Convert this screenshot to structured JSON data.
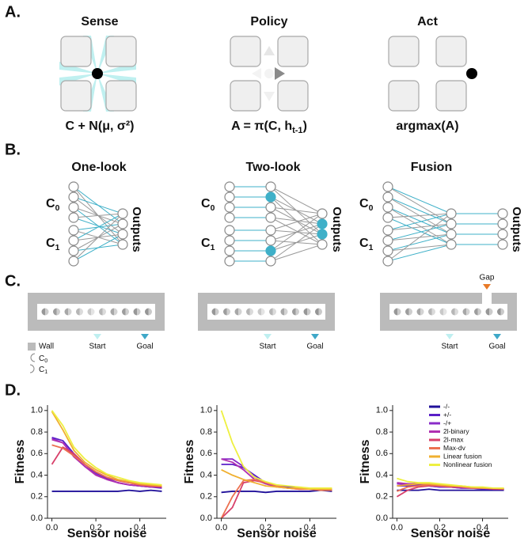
{
  "panel_labels": [
    "A.",
    "B.",
    "C.",
    "D."
  ],
  "loop": [
    {
      "title": "Sense",
      "formula": {
        "main": "C + N(μ, σ²)"
      }
    },
    {
      "title": "Policy",
      "formula": {
        "main": "A = π(C, h",
        "sub": "t-1",
        "end": ")"
      }
    },
    {
      "title": "Act",
      "formula": {
        "main": "argmax(A)"
      }
    }
  ],
  "networks": [
    {
      "title": "One-look",
      "c0": {
        "main": "C",
        "sub": "0"
      },
      "c1": {
        "main": "C",
        "sub": "1"
      },
      "outputs": "Outputs"
    },
    {
      "title": "Two-look",
      "c0": {
        "main": "C",
        "sub": "0"
      },
      "c1": {
        "main": "C",
        "sub": "1"
      },
      "outputs": "Outputs"
    },
    {
      "title": "Fusion",
      "c0": {
        "main": "C",
        "sub": "0"
      },
      "c1": {
        "main": "C",
        "sub": "1"
      },
      "outputs": "Outputs"
    }
  ],
  "environment": {
    "legend": {
      "wall": "Wall",
      "c0": {
        "main": "C",
        "sub": "0"
      },
      "c1": {
        "main": "C",
        "sub": "1"
      }
    },
    "tracks": [
      {
        "start": "Start",
        "goal": "Goal"
      },
      {
        "start": "Start",
        "goal": "Goal"
      },
      {
        "start": "Start",
        "goal": "Goal",
        "gap": "Gap"
      }
    ]
  },
  "chart_data": [
    {
      "type": "line",
      "xlabel": "Sensor noise",
      "ylabel": "Fitness",
      "x": [
        0,
        0.05,
        0.1,
        0.15,
        0.2,
        0.25,
        0.3,
        0.35,
        0.4,
        0.45,
        0.5
      ],
      "xlim": [
        -0.02,
        0.52
      ],
      "xticks": [
        {
          "value": 0,
          "label": "0.0"
        },
        0.2,
        0.4
      ],
      "ylim": [
        0,
        1.05
      ],
      "yticks": [
        {
          "value": 0,
          "label": "0.0"
        },
        0.2,
        0.4,
        0.6,
        0.8,
        {
          "value": 1,
          "label": "1.0"
        }
      ],
      "series": [
        {
          "color": "#20109a",
          "values": [
            0.25,
            0.25,
            0.25,
            0.25,
            0.25,
            0.25,
            0.25,
            0.26,
            0.25,
            0.26,
            0.25
          ]
        },
        {
          "color": "#5a1fc8",
          "values": [
            0.75,
            0.72,
            0.6,
            0.5,
            0.42,
            0.37,
            0.33,
            0.31,
            0.3,
            0.29,
            0.28
          ]
        },
        {
          "color": "#8a2cc8",
          "values": [
            0.74,
            0.7,
            0.58,
            0.48,
            0.41,
            0.36,
            0.33,
            0.31,
            0.3,
            0.29,
            0.29
          ]
        },
        {
          "color": "#b030b0",
          "values": [
            0.73,
            0.7,
            0.57,
            0.48,
            0.4,
            0.36,
            0.33,
            0.31,
            0.3,
            0.29,
            0.29
          ]
        },
        {
          "color": "#d8406a",
          "values": [
            0.5,
            0.66,
            0.6,
            0.5,
            0.43,
            0.38,
            0.35,
            0.33,
            0.31,
            0.3,
            0.29
          ]
        },
        {
          "color": "#ec7050",
          "values": [
            0.68,
            0.65,
            0.58,
            0.5,
            0.43,
            0.38,
            0.35,
            0.33,
            0.31,
            0.3,
            0.3
          ]
        },
        {
          "color": "#f0b030",
          "values": [
            0.99,
            0.82,
            0.63,
            0.52,
            0.45,
            0.4,
            0.36,
            0.34,
            0.32,
            0.31,
            0.3
          ]
        },
        {
          "color": "#eef040",
          "values": [
            1.0,
            0.86,
            0.66,
            0.55,
            0.47,
            0.41,
            0.38,
            0.35,
            0.33,
            0.32,
            0.31
          ]
        }
      ]
    },
    {
      "type": "line",
      "xlabel": "Sensor noise",
      "ylabel": "Fitness",
      "x": [
        0,
        0.05,
        0.1,
        0.15,
        0.2,
        0.25,
        0.3,
        0.35,
        0.4,
        0.45,
        0.5
      ],
      "xlim": [
        -0.02,
        0.52
      ],
      "xticks": [
        {
          "value": 0,
          "label": "0.0"
        },
        0.2,
        0.4
      ],
      "ylim": [
        0,
        1.05
      ],
      "yticks": [
        {
          "value": 0,
          "label": "0.0"
        },
        0.2,
        0.4,
        0.6,
        0.8,
        {
          "value": 1,
          "label": "1.0"
        }
      ],
      "series": [
        {
          "color": "#20109a",
          "values": [
            0.24,
            0.25,
            0.25,
            0.25,
            0.24,
            0.25,
            0.25,
            0.25,
            0.25,
            0.26,
            0.25
          ]
        },
        {
          "color": "#5a1fc8",
          "values": [
            0.5,
            0.5,
            0.47,
            0.4,
            0.33,
            0.3,
            0.29,
            0.28,
            0.27,
            0.27,
            0.27
          ]
        },
        {
          "color": "#8a2cc8",
          "values": [
            0.55,
            0.55,
            0.48,
            0.38,
            0.32,
            0.3,
            0.28,
            0.28,
            0.27,
            0.27,
            0.27
          ]
        },
        {
          "color": "#b030b0",
          "values": [
            0.55,
            0.52,
            0.45,
            0.36,
            0.32,
            0.29,
            0.28,
            0.28,
            0.27,
            0.27,
            0.27
          ]
        },
        {
          "color": "#d8406a",
          "values": [
            0.0,
            0.1,
            0.33,
            0.35,
            0.33,
            0.3,
            0.28,
            0.27,
            0.27,
            0.26,
            0.26
          ]
        },
        {
          "color": "#ec7050",
          "values": [
            0.0,
            0.2,
            0.35,
            0.36,
            0.33,
            0.3,
            0.28,
            0.27,
            0.27,
            0.26,
            0.26
          ]
        },
        {
          "color": "#f0b030",
          "values": [
            0.45,
            0.4,
            0.36,
            0.33,
            0.3,
            0.29,
            0.28,
            0.28,
            0.27,
            0.27,
            0.27
          ]
        },
        {
          "color": "#eef040",
          "values": [
            1.0,
            0.7,
            0.48,
            0.38,
            0.34,
            0.31,
            0.3,
            0.29,
            0.28,
            0.28,
            0.28
          ]
        }
      ]
    },
    {
      "type": "line",
      "xlabel": "Sensor noise",
      "ylabel": "Fitness",
      "x": [
        0,
        0.05,
        0.1,
        0.15,
        0.2,
        0.25,
        0.3,
        0.35,
        0.4,
        0.45,
        0.5
      ],
      "xlim": [
        -0.02,
        0.52
      ],
      "xticks": [
        {
          "value": 0,
          "label": "0.0"
        },
        0.2,
        0.4
      ],
      "ylim": [
        0,
        1.05
      ],
      "yticks": [
        {
          "value": 0,
          "label": "0.0"
        },
        0.2,
        0.4,
        0.6,
        0.8,
        {
          "value": 1,
          "label": "1.0"
        }
      ],
      "legend": "upper right",
      "series": [
        {
          "name": "-/-",
          "color": "#20109a",
          "values": [
            0.26,
            0.26,
            0.26,
            0.27,
            0.26,
            0.26,
            0.26,
            0.26,
            0.26,
            0.26,
            0.26
          ]
        },
        {
          "name": "+/-",
          "color": "#5a1fc8",
          "values": [
            0.3,
            0.3,
            0.31,
            0.3,
            0.29,
            0.29,
            0.28,
            0.28,
            0.27,
            0.27,
            0.27
          ]
        },
        {
          "name": "-/+",
          "color": "#8a2cc8",
          "values": [
            0.32,
            0.31,
            0.3,
            0.3,
            0.29,
            0.29,
            0.28,
            0.28,
            0.28,
            0.27,
            0.27
          ]
        },
        {
          "name": "2l-binary",
          "color": "#b030b0",
          "values": [
            0.33,
            0.32,
            0.32,
            0.31,
            0.3,
            0.3,
            0.29,
            0.28,
            0.28,
            0.28,
            0.27
          ]
        },
        {
          "name": "2l-max",
          "color": "#d8406a",
          "values": [
            0.2,
            0.26,
            0.29,
            0.3,
            0.3,
            0.29,
            0.29,
            0.28,
            0.28,
            0.27,
            0.27
          ]
        },
        {
          "name": "Max-dv",
          "color": "#ec7050",
          "values": [
            0.25,
            0.29,
            0.3,
            0.31,
            0.3,
            0.3,
            0.29,
            0.28,
            0.28,
            0.28,
            0.27
          ]
        },
        {
          "name": "Linear fusion",
          "color": "#f0b030",
          "values": [
            0.3,
            0.31,
            0.32,
            0.32,
            0.31,
            0.3,
            0.3,
            0.29,
            0.28,
            0.28,
            0.28
          ]
        },
        {
          "name": "Nonlinear fusion",
          "color": "#eef040",
          "values": [
            0.37,
            0.34,
            0.33,
            0.33,
            0.32,
            0.31,
            0.3,
            0.29,
            0.29,
            0.28,
            0.28
          ]
        }
      ]
    }
  ]
}
